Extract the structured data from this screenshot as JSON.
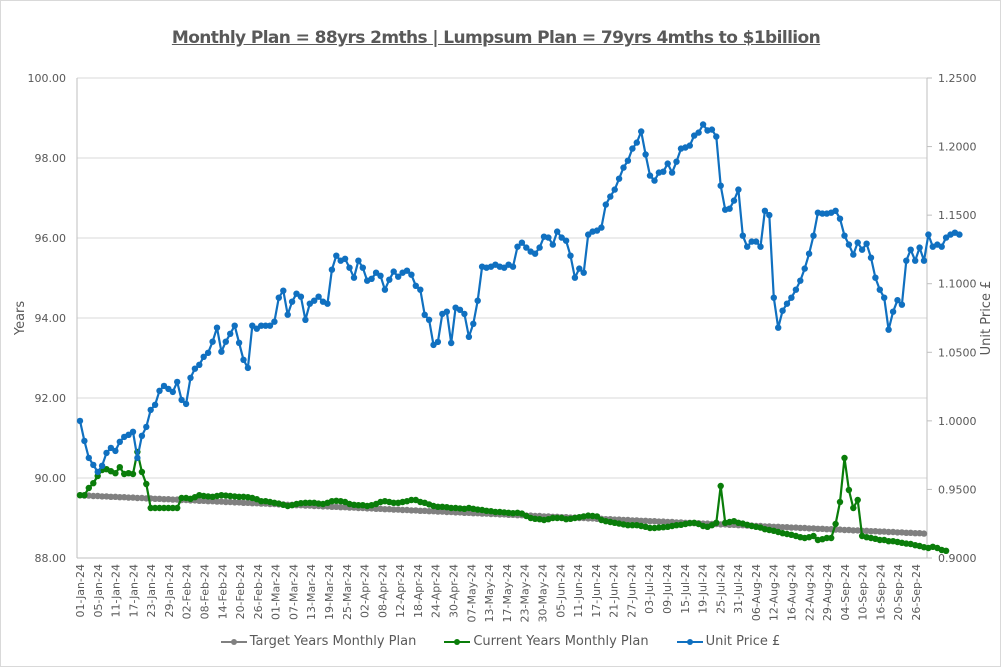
{
  "chart_data": {
    "type": "line",
    "title": "Monthly Plan = 88yrs 2mths | Lumpsum Plan = 79yrs 4mths to $1billion",
    "ylabel": "Years",
    "y2label": "Unit Price £",
    "ylim": [
      88,
      100
    ],
    "y2lim": [
      0.9,
      1.25
    ],
    "yticks": [
      "88.00",
      "90.00",
      "92.00",
      "94.00",
      "96.00",
      "98.00",
      "100.00"
    ],
    "y2ticks": [
      "0.9000",
      "0.9500",
      "1.0000",
      "1.0500",
      "1.1000",
      "1.1500",
      "1.2000",
      "1.2500"
    ],
    "grid": true,
    "legend_position": "bottom",
    "xtick_labels": [
      "01-Jan-24",
      "05-Jan-24",
      "11-Jan-24",
      "17-Jan-24",
      "23-Jan-24",
      "29-Jan-24",
      "02-Feb-24",
      "08-Feb-24",
      "14-Feb-24",
      "20-Feb-24",
      "26-Feb-24",
      "01-Mar-24",
      "07-Mar-24",
      "13-Mar-24",
      "19-Mar-24",
      "25-Mar-24",
      "02-Apr-24",
      "08-Apr-24",
      "12-Apr-24",
      "18-Apr-24",
      "24-Apr-24",
      "30-Apr-24",
      "07-May-24",
      "13-May-24",
      "17-May-24",
      "23-May-24",
      "30-May-24",
      "05-Jun-24",
      "11-Jun-24",
      "17-Jun-24",
      "21-Jun-24",
      "27-Jun-24",
      "03-Jul-24",
      "09-Jul-24",
      "15-Jul-24",
      "19-Jul-24",
      "25-Jul-24",
      "31-Jul-24",
      "06-Aug-24",
      "12-Aug-24",
      "16-Aug-24",
      "22-Aug-24",
      "29-Aug-24",
      "04-Sep-24",
      "10-Sep-24",
      "16-Sep-24",
      "20-Sep-24",
      "26-Sep-24"
    ],
    "series": [
      {
        "name": "Target Years Monthly Plan",
        "axis": "left",
        "color": "#808080",
        "values": [
          89.57,
          89.56,
          89.56,
          89.55,
          89.55,
          89.54,
          89.54,
          89.53,
          89.53,
          89.52,
          89.52,
          89.51,
          89.51,
          89.5,
          89.5,
          89.49,
          89.49,
          89.48,
          89.48,
          89.47,
          89.47,
          89.46,
          89.46,
          89.45,
          89.45,
          89.44,
          89.44,
          89.43,
          89.43,
          89.42,
          89.42,
          89.41,
          89.41,
          89.4,
          89.4,
          89.39,
          89.39,
          89.38,
          89.38,
          89.37,
          89.37,
          89.36,
          89.36,
          89.35,
          89.35,
          89.34,
          89.34,
          89.33,
          89.33,
          89.32,
          89.32,
          89.31,
          89.31,
          89.3,
          89.3,
          89.29,
          89.29,
          89.28,
          89.28,
          89.27,
          89.27,
          89.26,
          89.26,
          89.25,
          89.25,
          89.24,
          89.24,
          89.23,
          89.23,
          89.22,
          89.22,
          89.21,
          89.21,
          89.2,
          89.2,
          89.19,
          89.19,
          89.18,
          89.18,
          89.17,
          89.17,
          89.16,
          89.16,
          89.15,
          89.15,
          89.14,
          89.14,
          89.13,
          89.13,
          89.12,
          89.12,
          89.11,
          89.11,
          89.1,
          89.1,
          89.09,
          89.09,
          89.08,
          89.08,
          89.07,
          89.07,
          89.06,
          89.06,
          89.05,
          89.05,
          89.04,
          89.04,
          89.03,
          89.03,
          89.02,
          89.02,
          89.01,
          89.01,
          89.0,
          89.0,
          88.99,
          88.99,
          88.98,
          88.98,
          88.97,
          88.97,
          88.96,
          88.96,
          88.95,
          88.95,
          88.94,
          88.94,
          88.93,
          88.93,
          88.92,
          88.92,
          88.91,
          88.91,
          88.9,
          88.9,
          88.89,
          88.89,
          88.88,
          88.88,
          88.87,
          88.87,
          88.86,
          88.86,
          88.85,
          88.85,
          88.84,
          88.84,
          88.83,
          88.83,
          88.82,
          88.82,
          88.81,
          88.81,
          88.8,
          88.8,
          88.79,
          88.79,
          88.78,
          88.78,
          88.77,
          88.77,
          88.76,
          88.76,
          88.75,
          88.75,
          88.74,
          88.74,
          88.73,
          88.73,
          88.72,
          88.72,
          88.71,
          88.71,
          88.7,
          88.7,
          88.69,
          88.69,
          88.68,
          88.68,
          88.67,
          88.67,
          88.66,
          88.66,
          88.65,
          88.65,
          88.64,
          88.64,
          88.63,
          88.63,
          88.62,
          88.62,
          88.61
        ]
      },
      {
        "name": "Current Years Monthly Plan",
        "axis": "left",
        "color": "#0a7d0a",
        "values": [
          89.57,
          89.57,
          89.75,
          89.87,
          90.05,
          90.2,
          90.22,
          90.17,
          90.12,
          90.27,
          90.1,
          90.12,
          90.1,
          90.65,
          90.15,
          89.85,
          89.25,
          89.25,
          89.25,
          89.25,
          89.25,
          89.25,
          89.25,
          89.5,
          89.5,
          89.48,
          89.52,
          89.57,
          89.55,
          89.54,
          89.53,
          89.55,
          89.57,
          89.56,
          89.55,
          89.54,
          89.53,
          89.53,
          89.52,
          89.5,
          89.47,
          89.42,
          89.42,
          89.4,
          89.38,
          89.36,
          89.33,
          89.3,
          89.32,
          89.35,
          89.37,
          89.38,
          89.38,
          89.38,
          89.36,
          89.35,
          89.38,
          89.42,
          89.43,
          89.42,
          89.4,
          89.35,
          89.33,
          89.32,
          89.32,
          89.3,
          89.32,
          89.35,
          89.4,
          89.42,
          89.4,
          89.38,
          89.38,
          89.4,
          89.42,
          89.45,
          89.45,
          89.4,
          89.38,
          89.34,
          89.3,
          89.28,
          89.28,
          89.27,
          89.25,
          89.25,
          89.24,
          89.23,
          89.25,
          89.23,
          89.21,
          89.2,
          89.18,
          89.17,
          89.15,
          89.15,
          89.14,
          89.13,
          89.12,
          89.13,
          89.11,
          89.05,
          89.0,
          88.98,
          88.97,
          88.95,
          88.97,
          89.0,
          89.0,
          89.0,
          88.97,
          88.98,
          89.0,
          89.02,
          89.04,
          89.06,
          89.05,
          89.04,
          88.95,
          88.92,
          88.9,
          88.88,
          88.86,
          88.84,
          88.82,
          88.82,
          88.82,
          88.8,
          88.78,
          88.75,
          88.75,
          88.76,
          88.77,
          88.78,
          88.8,
          88.82,
          88.83,
          88.85,
          88.87,
          88.88,
          88.85,
          88.8,
          88.78,
          88.82,
          88.88,
          89.8,
          88.88,
          88.9,
          88.92,
          88.88,
          88.86,
          88.83,
          88.8,
          88.78,
          88.76,
          88.72,
          88.7,
          88.68,
          88.65,
          88.62,
          88.6,
          88.58,
          88.55,
          88.52,
          88.5,
          88.52,
          88.55,
          88.45,
          88.47,
          88.5,
          88.5,
          88.85,
          89.4,
          90.5,
          89.7,
          89.25,
          89.45,
          88.55,
          88.52,
          88.5,
          88.48,
          88.45,
          88.45,
          88.42,
          88.42,
          88.4,
          88.38,
          88.36,
          88.35,
          88.32,
          88.3,
          88.27,
          88.25,
          88.28,
          88.25,
          88.2,
          88.18
        ]
      },
      {
        "name": "Unit Price £",
        "axis": "right",
        "color": "#1070c0",
        "values": [
          1.0,
          0.9854,
          0.973,
          0.9679,
          0.9628,
          0.9672,
          0.9766,
          0.9803,
          0.9781,
          0.9847,
          0.9883,
          0.9898,
          0.992,
          0.973,
          0.9891,
          0.9956,
          1.008,
          1.0117,
          1.0219,
          1.0255,
          1.0233,
          1.0211,
          1.0284,
          1.0153,
          1.0124,
          1.0314,
          1.038,
          1.0409,
          1.0467,
          1.0496,
          1.0577,
          1.0679,
          1.0504,
          1.0577,
          1.0635,
          1.0694,
          1.0569,
          1.0445,
          1.0386,
          1.0694,
          1.0672,
          1.0694,
          1.0694,
          1.0694,
          1.0723,
          1.0898,
          1.0949,
          1.0774,
          1.0869,
          1.0927,
          1.0905,
          1.0737,
          1.0854,
          1.0876,
          1.0905,
          1.0869,
          1.0854,
          1.1102,
          1.1204,
          1.1168,
          1.1182,
          1.1117,
          1.1044,
          1.1168,
          1.1117,
          1.1022,
          1.1036,
          1.108,
          1.1058,
          1.0956,
          1.1029,
          1.1088,
          1.1051,
          1.108,
          1.1095,
          1.1066,
          1.0985,
          1.0956,
          1.0773,
          1.0737,
          1.0554,
          1.0576,
          1.078,
          1.0796,
          1.0568,
          1.0825,
          1.081,
          1.078,
          1.0613,
          1.0708,
          1.0876,
          1.1124,
          1.1117,
          1.1124,
          1.1139,
          1.1124,
          1.1117,
          1.1139,
          1.1124,
          1.127,
          1.1299,
          1.1263,
          1.1234,
          1.1219,
          1.1263,
          1.1343,
          1.1336,
          1.1285,
          1.138,
          1.1336,
          1.1314,
          1.1204,
          1.1044,
          1.111,
          1.108,
          1.1358,
          1.138,
          1.1387,
          1.1409,
          1.1577,
          1.1635,
          1.1686,
          1.1766,
          1.1847,
          1.1897,
          1.1985,
          1.2029,
          1.211,
          1.1942,
          1.1788,
          1.1752,
          1.181,
          1.1817,
          1.1876,
          1.181,
          1.189,
          1.1985,
          1.1993,
          1.2007,
          1.208,
          1.2102,
          1.2161,
          1.2117,
          1.2124,
          1.2073,
          1.1715,
          1.154,
          1.1547,
          1.1606,
          1.1686,
          1.135,
          1.127,
          1.1307,
          1.1307,
          1.127,
          1.1532,
          1.15,
          1.0898,
          1.0679,
          1.0803,
          1.0854,
          1.0898,
          1.0956,
          1.1022,
          1.111,
          1.1219,
          1.135,
          1.1518,
          1.1511,
          1.1511,
          1.1518,
          1.1532,
          1.1474,
          1.135,
          1.1285,
          1.1212,
          1.13,
          1.1248,
          1.1292,
          1.119,
          1.1044,
          1.0956,
          1.0898,
          1.0665,
          1.0796,
          1.088,
          1.0847,
          1.1168,
          1.1248,
          1.1168,
          1.1263,
          1.1168,
          1.1358,
          1.127,
          1.1285,
          1.127,
          1.1336,
          1.1358,
          1.1372,
          1.1358
        ]
      }
    ]
  }
}
